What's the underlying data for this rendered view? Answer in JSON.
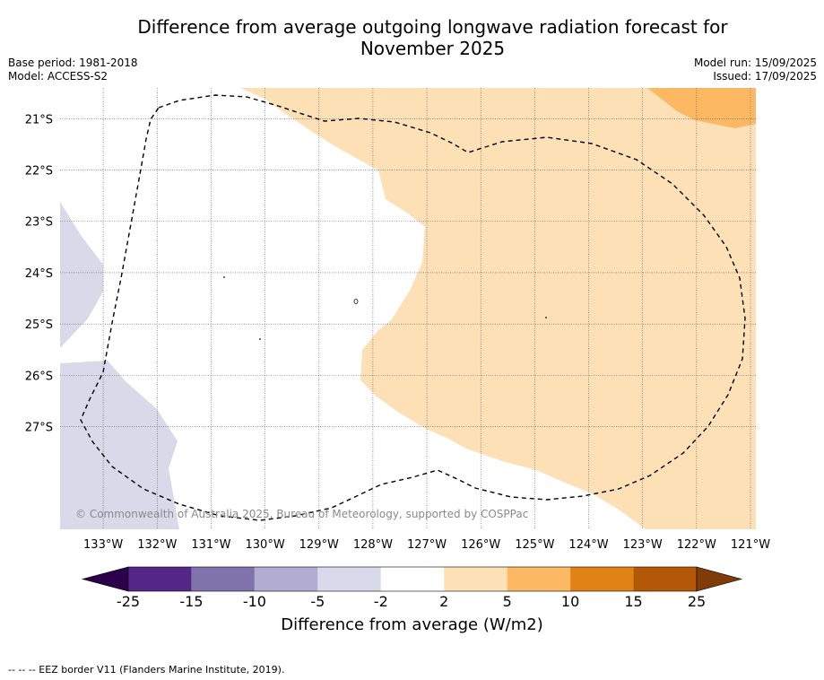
{
  "header": {
    "title_line1": "Difference from average outgoing longwave radiation forecast for",
    "title_line2": "November 2025",
    "base_period": "Base period: 1981-2018",
    "model": "Model: ACCESS-S2",
    "model_run": "Model run: 15/09/2025",
    "issued": "Issued: 17/09/2025"
  },
  "map": {
    "lat_range": [
      -29,
      -20.4
    ],
    "lon_range": [
      -133.8,
      -120.9
    ],
    "lat_labels": [
      "21°S",
      "22°S",
      "23°S",
      "24°S",
      "25°S",
      "26°S",
      "27°S"
    ],
    "lon_labels": [
      "133°W",
      "132°W",
      "131°W",
      "130°W",
      "129°W",
      "128°W",
      "127°W",
      "126°W",
      "125°W",
      "124°W",
      "123°W",
      "122°W",
      "121°W"
    ],
    "copyright": "© Commonwealth of Australia 2025, Bureau of Meteorology, supported by COSPPac",
    "colors": {
      "light_purple": "#d9d9ea",
      "light_orange": "#fee0b6",
      "orange": "#fdb863",
      "grid": "#555555"
    }
  },
  "colorbar": {
    "title": "Difference from average (W/m2)",
    "tick_labels": [
      "-25",
      "-15",
      "-10",
      "-5",
      "-2",
      "2",
      "5",
      "10",
      "15",
      "25"
    ],
    "colors": [
      "#542788",
      "#8073ac",
      "#b2abd2",
      "#d8daeb",
      "#ffffff",
      "#fee0b6",
      "#fdb863",
      "#e08214",
      "#b35806"
    ],
    "low_extend_color": "#2d004b",
    "high_extend_color": "#7f3b08"
  },
  "footer": {
    "legend_text": "--  --  -- EEZ border V11 (Flanders Marine Institute, 2019)."
  }
}
